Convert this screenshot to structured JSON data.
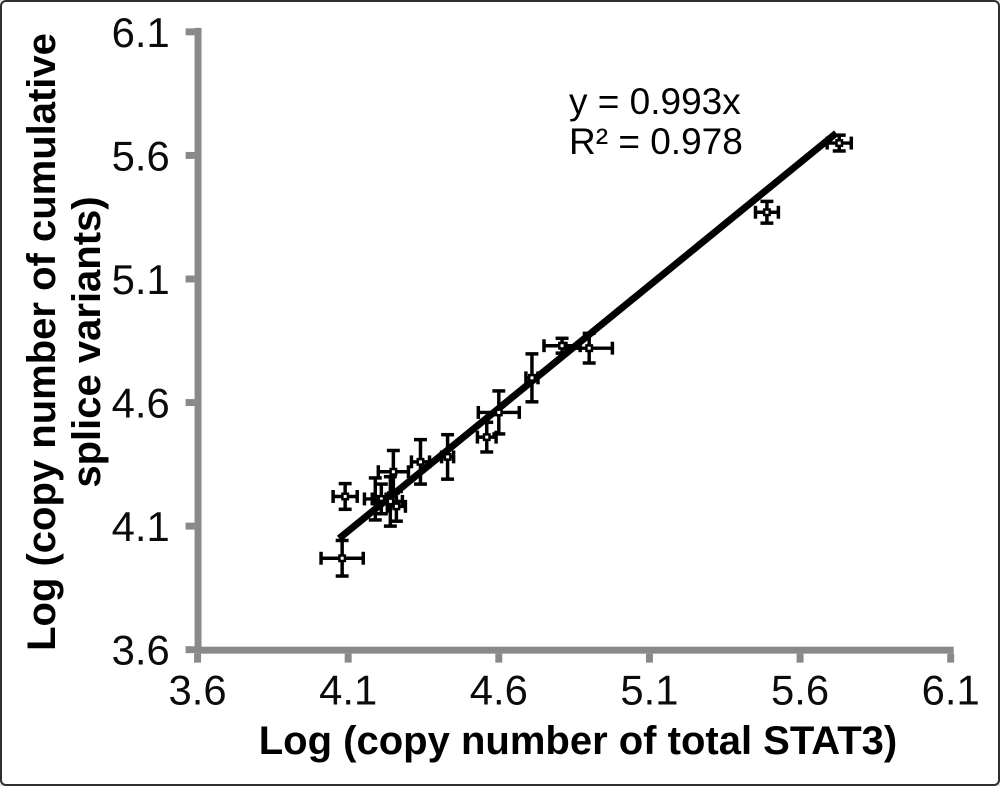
{
  "chart_data": {
    "type": "scatter",
    "xlabel": "Log (copy number of total STAT3)",
    "ylabel_line1": "Log (copy number of cumulative",
    "ylabel_line2": "splice variants)",
    "xlim": [
      3.6,
      6.1
    ],
    "ylim": [
      3.6,
      6.1
    ],
    "x_ticks": [
      3.6,
      4.1,
      4.6,
      5.1,
      5.6,
      6.1
    ],
    "y_ticks": [
      3.6,
      4.1,
      4.6,
      5.1,
      5.6,
      6.1
    ],
    "grid": false,
    "annotation": {
      "line1": "y = 0.993x",
      "line2": "R² = 0.978"
    },
    "trendline": {
      "x1": 4.07,
      "y1": 4.05,
      "x2": 5.72,
      "y2": 5.69
    },
    "points": [
      {
        "x": 4.08,
        "y": 3.97,
        "ex": 0.07,
        "ey": 0.072
      },
      {
        "x": 4.09,
        "y": 4.22,
        "ex": 0.04,
        "ey": 0.052
      },
      {
        "x": 4.19,
        "y": 4.21,
        "ex": 0.036,
        "ey": 0.085
      },
      {
        "x": 4.21,
        "y": 4.21,
        "ex": 0.03,
        "ey": 0.06
      },
      {
        "x": 4.24,
        "y": 4.2,
        "ex": 0.04,
        "ey": 0.1
      },
      {
        "x": 4.26,
        "y": 4.18,
        "ex": 0.03,
        "ey": 0.06
      },
      {
        "x": 4.25,
        "y": 4.32,
        "ex": 0.05,
        "ey": 0.086
      },
      {
        "x": 4.34,
        "y": 4.36,
        "ex": 0.03,
        "ey": 0.09
      },
      {
        "x": 4.43,
        "y": 4.38,
        "ex": 0.02,
        "ey": 0.09
      },
      {
        "x": 4.56,
        "y": 4.46,
        "ex": 0.031,
        "ey": 0.06
      },
      {
        "x": 4.6,
        "y": 4.56,
        "ex": 0.068,
        "ey": 0.087
      },
      {
        "x": 4.71,
        "y": 4.7,
        "ex": 0.02,
        "ey": 0.097
      },
      {
        "x": 4.81,
        "y": 4.83,
        "ex": 0.06,
        "ey": 0.03
      },
      {
        "x": 4.9,
        "y": 4.82,
        "ex": 0.077,
        "ey": 0.06
      },
      {
        "x": 5.49,
        "y": 5.37,
        "ex": 0.038,
        "ey": 0.044
      },
      {
        "x": 5.73,
        "y": 5.65,
        "ex": 0.04,
        "ey": 0.032
      }
    ],
    "colors": {
      "axis": "#898989",
      "marker": "#000000",
      "line": "#000000",
      "text": "#0b0b0b",
      "background": "#ffffff"
    }
  }
}
